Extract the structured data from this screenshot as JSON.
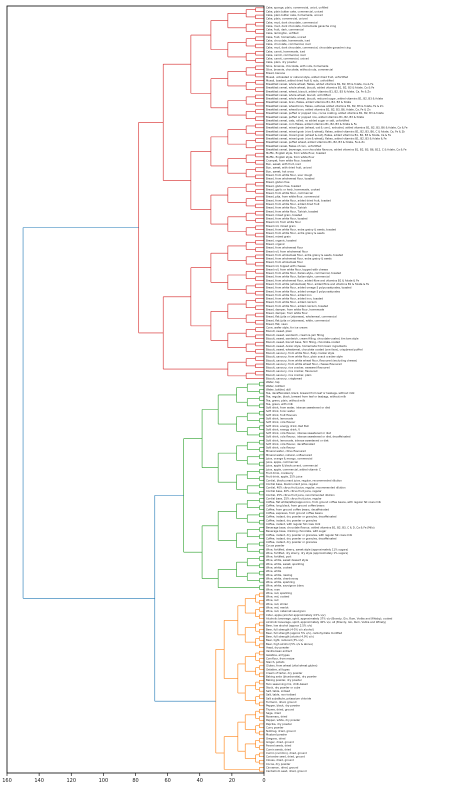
{
  "chart_data": {
    "type": "dendrogram",
    "orientation": "right",
    "xlim": [
      160,
      0
    ],
    "xticks": [
      160,
      140,
      120,
      100,
      80,
      60,
      40,
      20,
      0
    ],
    "colors": {
      "red": "#d62728",
      "green": "#2ca02c",
      "orange": "#ff7f0e",
      "blue": "#1f77b4"
    },
    "clusters": [
      {
        "color": "red",
        "labels": [
          "Cake, sponge, plain, commercial, unicd, unfilled",
          "Cake, plain butter cake, commercial, uniced",
          "Cake, plain butter cake, homemade, uniced",
          "Cake, plain, commercial, uniced",
          "Cake, mud, dark chocolate, commercial",
          "Cake, mud, dark chocolate, homemade ganache icing",
          "Cake, fruit, dark, commercial",
          "Cake, lamington, unfilled",
          "Cake, fruit, homemade, uniced",
          "Cake, chocolate, homemade, iced",
          "Cake, chocolate, commercial, iced",
          "Cake, mud, dark chocolate, commercial, chocolate ganache icing",
          "Cake, carrot, homemade, iced",
          "Cake, carrot, commercial, iced",
          "Cake, carrot, commercial, uniced",
          "Cake, plain, dry powder",
          "Slice, brownie, chocolate, with nuts, homemade",
          "Slice, brownie, chocolate, without nuts, commercial",
          "Bread, banana",
          "Muesli, untoasted or natural style, added dried fruit, unfortified",
          "Muesli, toasted, added dried fruit & nuts, unfortified",
          "Breakfast cereal, whole wheat, flakes, added vitamins B1, B2, B3 & folate, Ca & Fe",
          "Breakfast cereal, whole wheat, biscuit, added vitamins B1, B2, B3 & folate, Ca & Fe",
          "Breakfast cereal, wheat, biscuit, added vitamins B1, B2, B3 & folate, Ca, Fe & Zn",
          "Breakfast cereal, whole wheat, biscuit, unfortified",
          "Breakfast cereal, whole wheat, biscuit, reduced sugar, added vitamins B1, B2, B3 & folate",
          "Breakfast cereal, bran, flakes, added vitamins B1, B2, B3 & folate",
          "Breakfast cereal, wheat bran, flakes, sultanas added vitamins B1, B2, B3 & folate, Fe & Zn",
          "Breakfast cereal, wheat bran, added vitamins B1, B2, B3, B6, folate, Ca, Fe & Zn",
          "Breakfast cereal, puffed or popped rice, cocoa coating, added vitamins B1, B2, B3 & folate",
          "Breakfast cereal, puffed or popped rice, added vitamins B1, B2, B3 & folate",
          "Breakfast cereal, oats, rolled, no added sugar or salt, unfortified",
          "Breakfast cereal, corn flakes, added vitamins B1, B2, B3 & folate & Fe",
          "Breakfast cereal, mixed grain (wheat, oat & corn), extruded, added vitamins B1, B2, B3, B6 & folate, Ca & Fe",
          "Breakfast cereal, mixed grain (rice & wheat), flakes, added vitamins B1, B2, B3, B6, C & folate, Ca, Fe & Zn",
          "Breakfast cereal, mixed grain (wheat & oat), flakes, added vitamins B1, B2, B3 & folate, Ca & Fe",
          "Breakfast cereal, mixed grain (rice & wheat), flakes, added vitamins B1, B2, B3 & folate & Fe",
          "Breakfast cereal, puffed wheat, added vitamins B1, B2, B3 & folate, Fe & Zn",
          "Breakfast cereal, flakes of corn, unfortified",
          "Breakfast cereal, beverage, non-chocolate flavours, added vitamins B1, B2, B3, B6, B12, C & folate, Ca & Fe",
          "Muffin, English style, from white flour, toasted",
          "Muffin, English style, from white flour",
          "Crumpet, from white flour, toasted",
          "Bun, sweet, with fruit, iced",
          "Bun, sweet, with dried fruit, uniced",
          "Bun, sweet, hot cross",
          "Bread, from white flour, sour dough",
          "Bread, from wholemeal flour, toasted",
          "Bread, gluten free",
          "Bread, gluten free, toasted",
          "Bread, garlic or herb, homemade, cooked",
          "Bread, from white flour, commercial",
          "Bread, pita, from white flour, commercial",
          "Bread, from white flour, added dried fruit, toasted",
          "Bread, from white flour, added dried fruit",
          "Bread, from white flour, Turkish",
          "Bread, from white flour, Turkish, toasted",
          "Bread, mixed grain, toasted",
          "Bread, from white flour, toasted",
          "Bread roll, from white flour",
          "Bread roll, mixed grain",
          "Bread, from white flour, extra grainy & seeds, toasted",
          "Bread, from white flour, extra grainy & seeds",
          "Bread, mixed grain",
          "Bread, organic, toasted",
          "Bread, organic",
          "Bread, from wholemeal flour",
          "Bread roll, from wholemeal flour",
          "Bread, from wholemeal flour, extra grainy & seeds, toasted",
          "Bread, from wholemeal flour, extra grainy & seeds",
          "Bread, from wholemeal flour",
          "Bread roll, topped with cheese",
          "Bread roll, from white flour, topped with cheese",
          "Bread, from white flour, Italian-style, commercial, toasted",
          "Bread, from white flour, Italian-style, commercial",
          "Bread, from wholemeal flour, added fibre and vitamins B1 & folate & Fe",
          "Bread, from white (wholemeal) flour, added fibre and vitamins B1 & folate & Fe",
          "Bread, from white flour, added omega-3 polyunsaturates, toasted",
          "Bread, from white flour, added omega-3 polyunsaturates",
          "Bread, from white flour, added iron",
          "Bread, from white flour, added iron, toasted",
          "Bread, from white flour, added calcium",
          "Bread, from white flour, added calcium, toasted",
          "Bread, damper, from white flour, homemade",
          "Bread, damper, from white flour",
          "Bread, flat (pita or Lebanese), wholemeal, commercial",
          "Bread, flat (pita or Lebanese), white, commercial",
          "Bread, flat, naan",
          "Cone, wafer style, for ice cream",
          "Biscuit, sweet, plain",
          "Biscuit, sweet, sandwich, cream & jam filling",
          "Biscuit, sweet, sandwich, cream filling, chocolate-coated, tim tam style",
          "Biscuit, sweet, biscuit base, firm filling, chocolate-coated",
          "Biscuit, sweet, Anzac style, homemade from basic ingredients",
          "Biscuit, sweet, wheatmeal, chocolate coated (one face), crispbread puffed",
          "Biscuit, savoury, from white flour, flaky cracker style",
          "Biscuit, savoury, from white flour, plain snack cracker style",
          "Biscuit, savoury, from white wheat flour, flavoured (excluding cheese)",
          "Biscuit, savoury, from white wheat flour, cheese flavoured",
          "Biscuit, savoury, rice cracker, seaweed flavoured",
          "Biscuit, savoury, rice cracker, flavoured",
          "Biscuit, savoury, rice cracker, plain",
          "Biscuit, savoury, crispbread"
        ]
      },
      {
        "color": "green",
        "labels": [
          "Water, tap",
          "Water, bottled",
          "Water, bottled, still",
          "Tea, decaffeinated, black, brewed from leaf or teabags, without milk",
          "Tea, regular, black, brewed from leaf or teabags, without milk",
          "Tea, green, plain, without milk",
          "Tea, green, with milk",
          "Soft drink, from water, intense sweetened or diet",
          "Soft drink, tonic water",
          "Soft drink, fruit flavours",
          "Soft drink, lemonade",
          "Soft drink, cola flavour",
          "Soft drink, energy drink, Red Bull",
          "Soft drink, energy drink, V",
          "Soft drink, cola flavour, intense sweetened or diet",
          "Soft drink, cola flavour, intense sweetened or diet, decaffeinated",
          "Soft drink, lemonade, intense sweetened or diet",
          "Soft drink, cola flavour, decaffeinated",
          "Soft drink, cola flavour",
          "Mineral water, citrus flavoured",
          "Mineral water, natural, unflavoured",
          "Juice, orange & mango, commercial",
          "Juice, apple, commercial",
          "Juice, apple & blackcurrant, commercial",
          "Juice, apple, commercial, added vitamin C",
          "Fruit drink, cranberry",
          "Fruit drink, apple, 25% juice",
          "Cordial, blackcurrant juice, regular, recommended dilution",
          "Cordial base, blackcurrant juice, regular",
          "Cordial, 40% citrus fruit juice, regular, recommended dilution",
          "Cordial base, 40% citrus fruit juice, regular",
          "Cordial, 25% citrus fruit juice, recommended dilution",
          "Cordial base, 25% citrus fruit juice, regular",
          "Coffee, flat white/latte/cappuccino, from ground coffee beans, with regular fat cows milk",
          "Coffee, long black, from ground coffee beans",
          "Coffee, from ground coffee beans, decaffeinated",
          "Coffee, espresso, from ground coffee beans",
          "Coffee, instant, dry powder or granules, decaffeinated",
          "Coffee, instant, dry powder or granules",
          "Coffee, instant, with regular fat cows milk",
          "Beverage base, chocolate flavour, added vitamins B1, B2, B3, C & D, Ca & Fe (Milo)",
          "Beverage base, drinking chocolate, with sugar",
          "Coffee, instant, dry powder or granules, with regular fat cows milk",
          "Coffee, instant, dry powder or granules, decaffeinated",
          "Coffee, instant, dry powder or granules",
          "Cocoa powder",
          "Wine, fortified, sherry, sweet style (approximately 11% sugars)",
          "Wine, fortified, dry sherry, dry style (approximately 1% sugars)",
          "Wine, fortified, port",
          "Wine, white, sweet dessert style",
          "Wine, white, sweet, sparkling",
          "Wine, white, cooked",
          "Wine, white",
          "Wine, white, riesling",
          "Wine, white, chardonnay",
          "Wine, white, sparkling",
          "Wine, white, sauvignon blanc",
          "Wine, rose"
        ]
      },
      {
        "color": "orange",
        "labels": [
          "Wine, red, sparkling",
          "Wine, red, cooked",
          "Wine, red",
          "Wine, red, shiraz",
          "Wine, red, merlot",
          "Wine, red, cabernet sauvignon",
          "Cider, apple (alcohol approximately 4.5% v/v)",
          "Alcoholic beverage, spirit, approximately 37% v/v (Brandy, Gin, Rum, Vodka and Whisky), cooked",
          "Alcoholic beverage, spirit, approximately 40% v/v, all (Brandy, Gin, Rum, Vodka and Whisky)",
          "Beer, low alcohol (approx 2.5% v/v)",
          "Beer, full strength (4-5% v/v alcohol)",
          "Beer, full strength (approx 5% v/v), carbohydrate modified",
          "Beer, full strength (alcohol 4.9% v/v)",
          "Beer, light, reduced (3% v/v)",
          "Beer, high alcohol (5% v/v & above)",
          "Yeast, dry powder",
          "Vanilla bean extract",
          "Gelatine, all types",
          "Cornflour, from maize",
          "Starch, potato",
          "Gluten, from wheat (vital wheat gluten)",
          "Gelatine, all types",
          "Cream of tartar, dry powder",
          "Baking soda (bicarbonate), dry powder",
          "Baking powder, dry powder",
          "Taco seasoning mix, chilli-based",
          "Stock, dry powder or cube",
          "Salt, table, iodised",
          "Salt, table, non-iodised",
          "Salt substitute, potassium chloride",
          "Turmeric, dried, ground",
          "Pepper, black, dry powder",
          "Thyme, dried, ground",
          "Sage, dried",
          "Rosemary, dried",
          "Pepper, white, dry powder",
          "Paprika, dry powder",
          "Curry powder",
          "Nutmeg, dried, ground",
          "Mustard powder",
          "Oregano, dried",
          "Ginger, dried, ground",
          "Fennel seeds, dried",
          "Cumin seeds, dried",
          "Cumin (cummin), dried, ground",
          "Coriander seed, dried, ground",
          "Cloves, dried, ground",
          "Cocoa, dry powder",
          "Cinnamon, dried, ground",
          "Cardamom seed, dried, ground"
        ]
      }
    ]
  }
}
